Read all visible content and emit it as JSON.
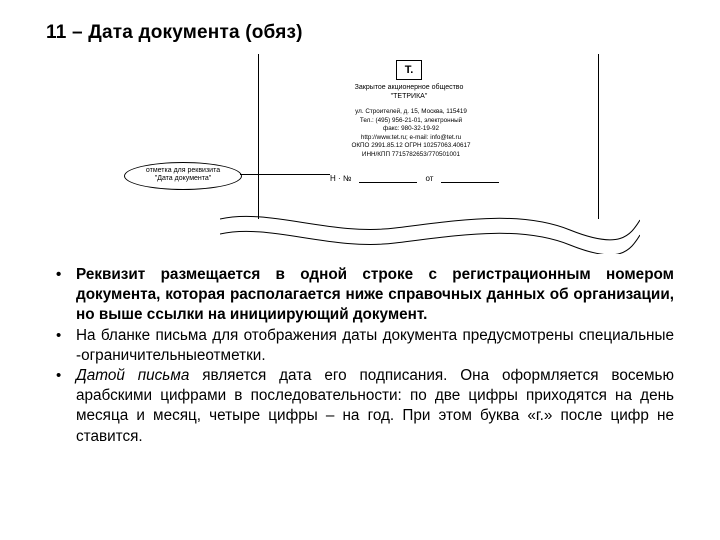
{
  "title": "11 – Дата документа (обяз)",
  "figure": {
    "logo": "Т.",
    "org_line1": "Закрытое акционерное общество",
    "org_line2": "\"ТЕТРИКА\"",
    "ref_block": "ул. Строителей, д. 15, Москва, 115419\nТел.: (495) 956-21-01, электронный\nфакс: 980-32-19-92\nhttp://www.tet.ru; e-mail: info@tet.ru\nОКПО 2991.85.12 ОГРН 10257063.40617\nИНН/КПП 7715782653/770501001",
    "reg_left_label": "Н · №",
    "reg_mid_label": "от",
    "callout_line1": "отметка для реквизита",
    "callout_line2": "\"Дата документа\""
  },
  "bullets": [
    {
      "prefix": "Реквизит",
      "text": " размещается в одной строке с регистрационным номером документа, которая располагается ниже справочных данных об организации, но выше ссылки на инициирующий документ.",
      "style": "bold_full"
    },
    {
      "text": "На бланке письма для отображения даты документа предусмотрены специальные -ограничительныеотметки."
    },
    {
      "prefix": "Датой письма",
      "text": " является дата его подписания. Она оформляется восемью арабскими цифрами в последовательности: по две цифры приходятся на день месяца и месяц, четыре цифры – на год. При этом буква «г.» после цифр не ставится.",
      "style": "italic_prefix"
    }
  ]
}
